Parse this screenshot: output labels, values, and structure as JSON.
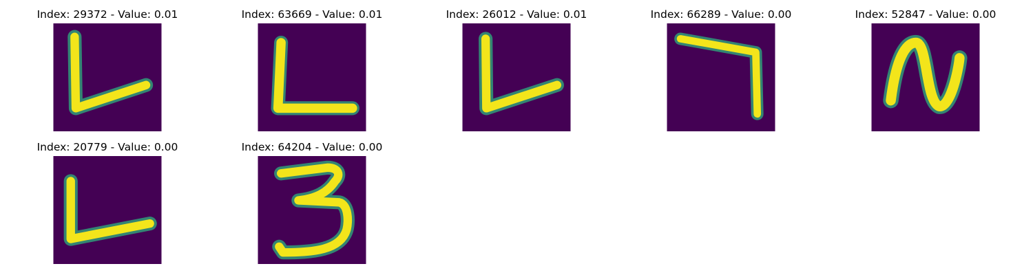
{
  "colors": {
    "background": "#440154",
    "stroke": "#f3e51b",
    "edge": "#2db27d"
  },
  "panels": [
    {
      "title": "Index: 29372 - Value: 0.01",
      "glyph": "L-shape, vertical stroke joined to slanted base"
    },
    {
      "title": "Index: 63669 - Value: 0.01",
      "glyph": "L-shape with horizontal base"
    },
    {
      "title": "Index: 26012 - Value: 0.01",
      "glyph": "V/L-shape with slanted base"
    },
    {
      "title": "Index: 66289 - Value: 0.00",
      "glyph": "7-shape"
    },
    {
      "title": "Index: 52847 - Value: 0.00",
      "glyph": "N/W-shape"
    },
    {
      "title": "Index: 20779 - Value: 0.00",
      "glyph": "L-shape with slanted base"
    },
    {
      "title": "Index: 64204 - Value: 0.00",
      "glyph": "digit 3"
    }
  ]
}
